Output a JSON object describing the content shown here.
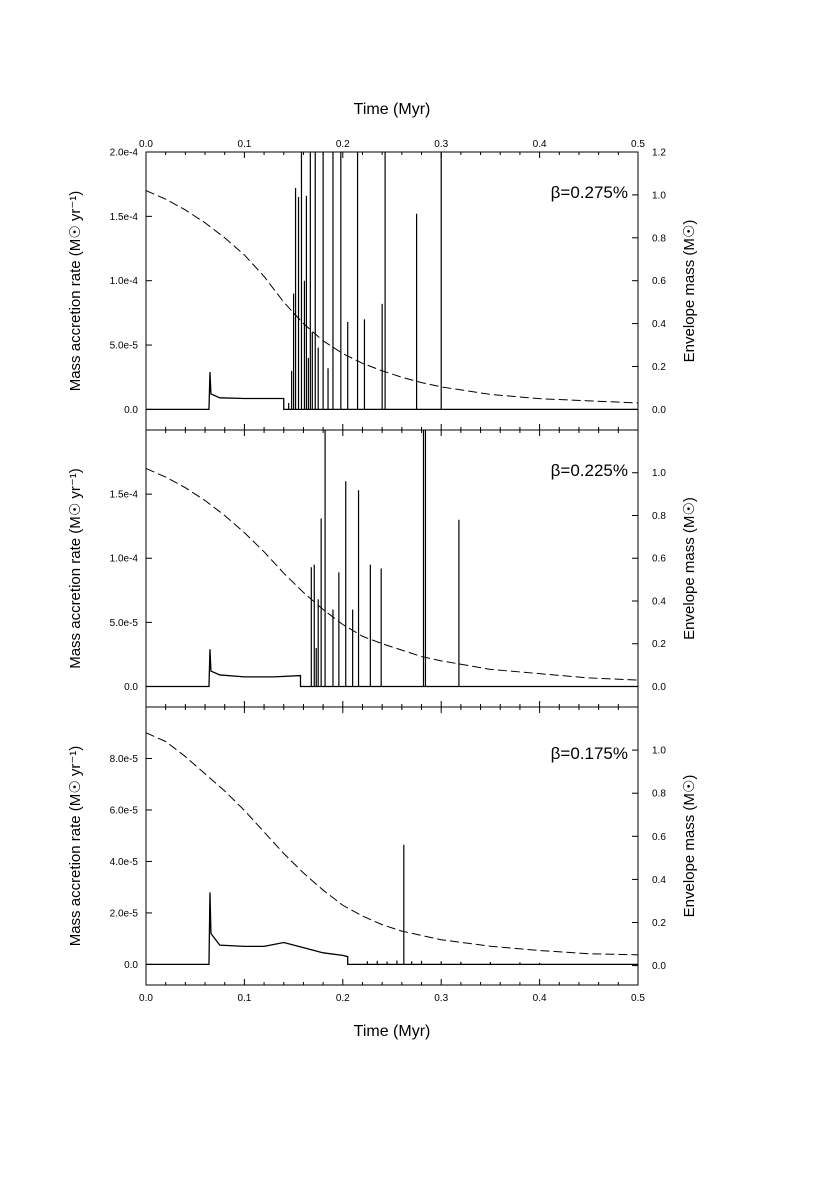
{
  "figure": {
    "top_axis_title": "Time (Myr)",
    "bottom_axis_title": "Time (Myr)"
  },
  "chart_data": [
    {
      "type": "line",
      "xlabel": "Time (Myr)",
      "ylabel_left": "Mass accretion rate (M☉ yr⁻¹)",
      "ylabel_right": "Envelope mass (M☉)",
      "annotation": "β=0.275%",
      "xlim": [
        0,
        0.5
      ],
      "ylim_left": [
        -1.6e-05,
        0.0002
      ],
      "ylim_right": [
        -0.096,
        1.2
      ],
      "x_ticks": [
        "0.0",
        "0.1",
        "0.2",
        "0.3",
        "0.4",
        "0.5"
      ],
      "y_ticks_left": [
        "0.0",
        "5.0e-5",
        "1.0e-4",
        "1.5e-4",
        "2.0e-4"
      ],
      "y_ticks_right": [
        "0.0",
        "0.2",
        "0.4",
        "0.6",
        "0.8",
        "1.0",
        "1.2"
      ],
      "grid": false,
      "series": [
        {
          "name": "Mass accretion rate",
          "style": "solid",
          "axis": "left",
          "baseline": [
            [
              0,
              0
            ],
            [
              0.064,
              0
            ],
            [
              0.065,
              2.9e-05
            ],
            [
              0.066,
              1.2e-05
            ],
            [
              0.075,
              9e-06
            ],
            [
              0.1,
              8.5e-06
            ],
            [
              0.14,
              8.5e-06
            ],
            [
              0.14,
              0
            ],
            [
              0.5,
              0
            ]
          ],
          "spikes": [
            [
              0.145,
              5e-06
            ],
            [
              0.148,
              3e-05
            ],
            [
              0.15,
              9e-05
            ],
            [
              0.152,
              0.000172
            ],
            [
              0.155,
              0.000165
            ],
            [
              0.158,
              0.0002
            ],
            [
              0.161,
              0.0001
            ],
            [
              0.163,
              0.000166
            ],
            [
              0.165,
              4e-05
            ],
            [
              0.167,
              0.0002
            ],
            [
              0.169,
              6e-05
            ],
            [
              0.172,
              0.0002
            ],
            [
              0.175,
              4.8e-05
            ],
            [
              0.18,
              0.0002
            ],
            [
              0.185,
              3.2e-05
            ],
            [
              0.19,
              0.0002
            ],
            [
              0.198,
              0.0002
            ],
            [
              0.205,
              6.8e-05
            ],
            [
              0.215,
              0.0002
            ],
            [
              0.222,
              7e-05
            ],
            [
              0.24,
              8.2e-05
            ],
            [
              0.243,
              0.0002
            ],
            [
              0.275,
              0.000152
            ],
            [
              0.3,
              0.0002
            ]
          ]
        },
        {
          "name": "Envelope mass",
          "style": "dashed",
          "axis": "right",
          "x": [
            0,
            0.02,
            0.04,
            0.06,
            0.08,
            0.1,
            0.12,
            0.14,
            0.16,
            0.18,
            0.2,
            0.22,
            0.24,
            0.26,
            0.28,
            0.3,
            0.35,
            0.4,
            0.45,
            0.5
          ],
          "y": [
            1.02,
            0.98,
            0.93,
            0.87,
            0.8,
            0.72,
            0.62,
            0.5,
            0.4,
            0.32,
            0.26,
            0.215,
            0.18,
            0.15,
            0.125,
            0.105,
            0.07,
            0.05,
            0.04,
            0.03
          ]
        }
      ]
    },
    {
      "type": "line",
      "xlabel": "Time (Myr)",
      "ylabel_left": "Mass accretion rate (M☉ yr⁻¹)",
      "ylabel_right": "Envelope mass (M☉)",
      "annotation": "β=0.225%",
      "xlim": [
        0,
        0.5
      ],
      "ylim_left": [
        -1.6e-05,
        0.0002
      ],
      "ylim_right": [
        -0.096,
        1.2
      ],
      "x_ticks": [
        "0.0",
        "0.1",
        "0.2",
        "0.3",
        "0.4",
        "0.5"
      ],
      "y_ticks_left": [
        "0.0",
        "5.0e-5",
        "1.0e-4",
        "1.5e-4"
      ],
      "y_ticks_right": [
        "0.0",
        "0.2",
        "0.4",
        "0.6",
        "0.8",
        "1.0"
      ],
      "grid": false,
      "series": [
        {
          "name": "Mass accretion rate",
          "style": "solid",
          "axis": "left",
          "baseline": [
            [
              0,
              0
            ],
            [
              0.064,
              0
            ],
            [
              0.065,
              2.9e-05
            ],
            [
              0.066,
              1.2e-05
            ],
            [
              0.075,
              9e-06
            ],
            [
              0.1,
              7.5e-06
            ],
            [
              0.13,
              7.5e-06
            ],
            [
              0.157,
              8.5e-06
            ],
            [
              0.157,
              0
            ],
            [
              0.5,
              0
            ]
          ],
          "spikes": [
            [
              0.168,
              9.3e-05
            ],
            [
              0.171,
              9.5e-05
            ],
            [
              0.173,
              3e-05
            ],
            [
              0.175,
              6.8e-05
            ],
            [
              0.178,
              0.000131
            ],
            [
              0.182,
              0.0002
            ],
            [
              0.19,
              6e-05
            ],
            [
              0.196,
              8.9e-05
            ],
            [
              0.203,
              0.00016
            ],
            [
              0.21,
              6e-05
            ],
            [
              0.216,
              0.000153
            ],
            [
              0.228,
              9.5e-05
            ],
            [
              0.239,
              9.2e-05
            ],
            [
              0.282,
              0.0002
            ],
            [
              0.284,
              0.0002
            ],
            [
              0.318,
              0.00013
            ]
          ]
        },
        {
          "name": "Envelope mass",
          "style": "dashed",
          "axis": "right",
          "x": [
            0,
            0.02,
            0.04,
            0.06,
            0.08,
            0.1,
            0.12,
            0.14,
            0.16,
            0.18,
            0.2,
            0.22,
            0.24,
            0.26,
            0.28,
            0.3,
            0.35,
            0.4,
            0.45,
            0.5
          ],
          "y": [
            1.02,
            0.98,
            0.93,
            0.87,
            0.8,
            0.72,
            0.63,
            0.53,
            0.44,
            0.36,
            0.29,
            0.235,
            0.2,
            0.17,
            0.14,
            0.12,
            0.08,
            0.06,
            0.04,
            0.03
          ]
        }
      ]
    },
    {
      "type": "line",
      "xlabel": "Time (Myr)",
      "ylabel_left": "Mass accretion rate (M☉ yr⁻¹)",
      "ylabel_right": "Envelope mass (M☉)",
      "annotation": "β=0.175%",
      "xlim": [
        0,
        0.5
      ],
      "ylim_left": [
        -8e-06,
        0.0001
      ],
      "ylim_right": [
        -0.09,
        1.2
      ],
      "x_ticks": [
        "0.0",
        "0.1",
        "0.2",
        "0.3",
        "0.4",
        "0.5"
      ],
      "x_tick_labels_bottom": [
        "0.0",
        "0.1",
        "0.2",
        "0.3",
        "0.4",
        "0.5"
      ],
      "y_ticks_left": [
        "0.0",
        "2.0e-5",
        "4.0e-5",
        "6.0e-5",
        "8.0e-5"
      ],
      "y_ticks_right": [
        "0.0",
        "0.2",
        "0.4",
        "0.6",
        "0.8",
        "1.0"
      ],
      "grid": false,
      "series": [
        {
          "name": "Mass accretion rate",
          "style": "solid",
          "axis": "left",
          "baseline": [
            [
              0,
              0
            ],
            [
              0.064,
              0
            ],
            [
              0.065,
              2.8e-05
            ],
            [
              0.066,
              1.2e-05
            ],
            [
              0.075,
              7.5e-06
            ],
            [
              0.1,
              7e-06
            ],
            [
              0.12,
              7e-06
            ],
            [
              0.14,
              8.5e-06
            ],
            [
              0.16,
              6.5e-06
            ],
            [
              0.18,
              4.5e-06
            ],
            [
              0.2,
              3.5e-06
            ],
            [
              0.205,
              3e-06
            ],
            [
              0.205,
              0
            ],
            [
              0.5,
              0
            ]
          ],
          "spikes": [
            [
              0.225,
              1.2e-06
            ],
            [
              0.235,
              1.4e-06
            ],
            [
              0.245,
              1.1e-06
            ],
            [
              0.255,
              1.5e-06
            ],
            [
              0.262,
              4.65e-05
            ],
            [
              0.27,
              1.2e-06
            ],
            [
              0.28,
              1.4e-06
            ],
            [
              0.3,
              1.2e-06
            ],
            [
              0.32,
              1e-06
            ],
            [
              0.35,
              9e-07
            ],
            [
              0.38,
              8e-07
            ],
            [
              0.4,
              6e-07
            ]
          ]
        },
        {
          "name": "Envelope mass",
          "style": "dashed",
          "axis": "right",
          "x": [
            0,
            0.02,
            0.04,
            0.06,
            0.08,
            0.1,
            0.12,
            0.14,
            0.16,
            0.18,
            0.2,
            0.22,
            0.24,
            0.26,
            0.28,
            0.3,
            0.35,
            0.4,
            0.45,
            0.5
          ],
          "y": [
            1.08,
            1.04,
            0.97,
            0.89,
            0.81,
            0.72,
            0.62,
            0.52,
            0.43,
            0.35,
            0.28,
            0.23,
            0.19,
            0.16,
            0.14,
            0.12,
            0.09,
            0.07,
            0.055,
            0.05
          ]
        }
      ]
    }
  ]
}
